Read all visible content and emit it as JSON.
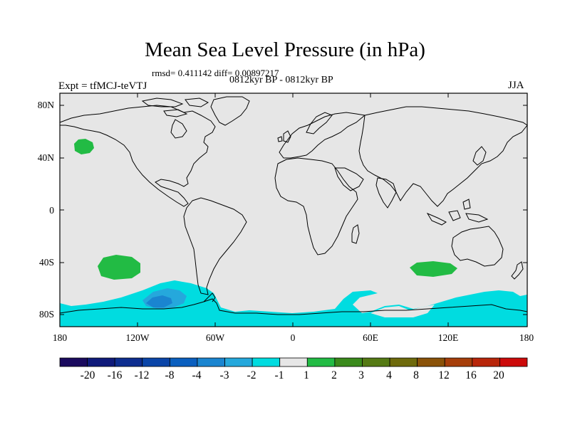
{
  "header": {
    "title": "Mean Sea Level Pressure (in hPa)",
    "stats": "rmsd= 0.411142 diff= 0.00897217",
    "period": "0812kyr BP - 0812kyr BP",
    "experiment": "Expt = tfMCJ-teVTJ",
    "season": "JJA"
  },
  "axes": {
    "lat_labels": [
      "80N",
      "40N",
      "0",
      "40S",
      "80S"
    ],
    "lon_labels": [
      "180",
      "120W",
      "60W",
      "0",
      "60E",
      "120E",
      "180"
    ]
  },
  "colorbar": {
    "labels": [
      "-20",
      "-16",
      "-12",
      "-8",
      "-4",
      "-3",
      "-2",
      "-1",
      "1",
      "2",
      "3",
      "4",
      "8",
      "12",
      "16",
      "20"
    ],
    "colors": [
      "#1a0a5e",
      "#0f1a7a",
      "#0d2d8f",
      "#0a45a8",
      "#0a5fbf",
      "#1a85d0",
      "#25a8dc",
      "#00dce0",
      "#e6e6e6",
      "#22bb44",
      "#3a8a1c",
      "#557a14",
      "#6e6a0c",
      "#8a5208",
      "#a63e0a",
      "#b8260a",
      "#cc0a0a"
    ]
  },
  "map": {
    "background_color": "#e6e6e6",
    "anomaly_regions": [
      {
        "name": "north-pacific-positive",
        "value_class": "1 to 2",
        "color": "#22bb44"
      },
      {
        "name": "south-pacific-positive",
        "value_class": "1 to 2",
        "color": "#22bb44"
      },
      {
        "name": "indian-ocean-positive",
        "value_class": "1 to 2",
        "color": "#22bb44"
      },
      {
        "name": "southern-ocean-negative",
        "value_class": "-2 to -1",
        "color": "#00dce0"
      },
      {
        "name": "amundsen-sea-negative",
        "value_class": "-3 to -2",
        "color": "#25a8dc"
      },
      {
        "name": "amundsen-sea-core",
        "value_class": "-4 to -3",
        "color": "#1a85d0"
      }
    ]
  }
}
